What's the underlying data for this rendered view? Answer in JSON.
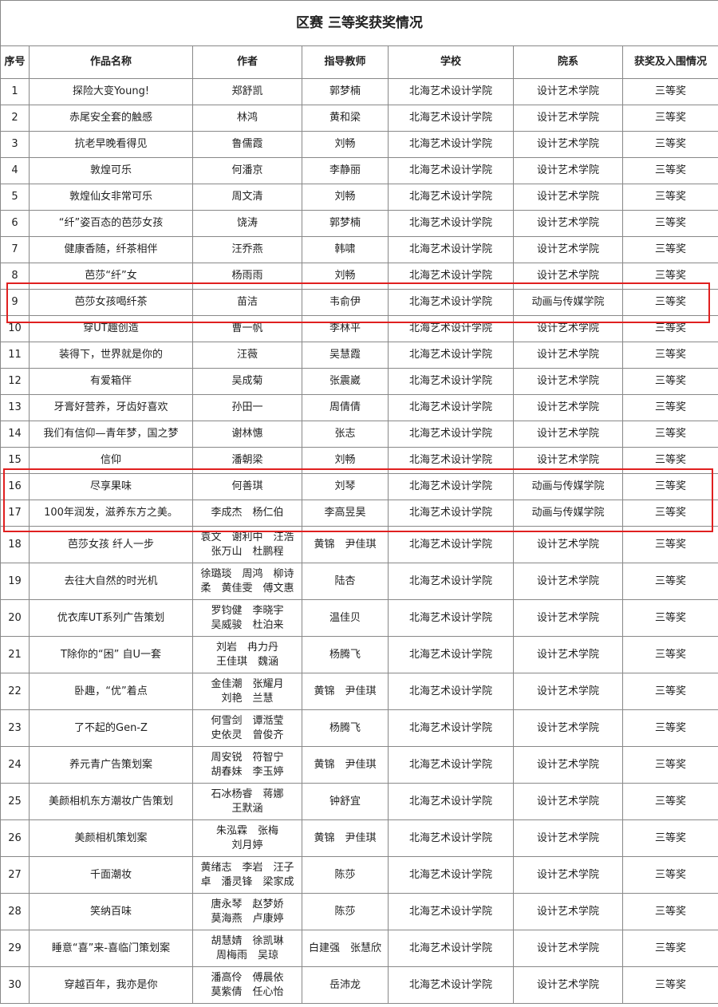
{
  "title": "区赛 三等奖获奖情况",
  "headers": [
    "序号",
    "作品名称",
    "作者",
    "指导教师",
    "学校",
    "院系",
    "获奖及入围情况"
  ],
  "highlight_color": "#e02020",
  "rows": [
    {
      "no": "1",
      "work": "探险大变Young!",
      "author": "郑舒凯",
      "teacher": "郭梦楠",
      "school": "北海艺术设计学院",
      "dept": "设计艺术学院",
      "award": "三等奖"
    },
    {
      "no": "2",
      "work": "赤尾安全套的触感",
      "author": "林鸿",
      "teacher": "黄和梁",
      "school": "北海艺术设计学院",
      "dept": "设计艺术学院",
      "award": "三等奖"
    },
    {
      "no": "3",
      "work": "抗老早晚看得见",
      "author": "鲁儒霞",
      "teacher": "刘畅",
      "school": "北海艺术设计学院",
      "dept": "设计艺术学院",
      "award": "三等奖"
    },
    {
      "no": "4",
      "work": "敦煌可乐",
      "author": "何潘京",
      "teacher": "李静丽",
      "school": "北海艺术设计学院",
      "dept": "设计艺术学院",
      "award": "三等奖"
    },
    {
      "no": "5",
      "work": "敦煌仙女非常可乐",
      "author": "周文清",
      "teacher": "刘畅",
      "school": "北海艺术设计学院",
      "dept": "设计艺术学院",
      "award": "三等奖"
    },
    {
      "no": "6",
      "work": "“纤”姿百态的芭莎女孩",
      "author": "饶涛",
      "teacher": "郭梦楠",
      "school": "北海艺术设计学院",
      "dept": "设计艺术学院",
      "award": "三等奖"
    },
    {
      "no": "7",
      "work": "健康香随，纤茶相伴",
      "author": "汪乔燕",
      "teacher": "韩啸",
      "school": "北海艺术设计学院",
      "dept": "设计艺术学院",
      "award": "三等奖"
    },
    {
      "no": "8",
      "work": "芭莎“纤”女",
      "author": "杨雨雨",
      "teacher": "刘畅",
      "school": "北海艺术设计学院",
      "dept": "设计艺术学院",
      "award": "三等奖"
    },
    {
      "no": "9",
      "work": "芭莎女孩喝纤茶",
      "author": "苗洁",
      "teacher": "韦俞伊",
      "school": "北海艺术设计学院",
      "dept": "动画与传媒学院",
      "award": "三等奖"
    },
    {
      "no": "10",
      "work": "穿UT趣创造",
      "author": "曹一帆",
      "teacher": "李林平",
      "school": "北海艺术设计学院",
      "dept": "设计艺术学院",
      "award": "三等奖"
    },
    {
      "no": "11",
      "work": "装得下，世界就是你的",
      "author": "汪薇",
      "teacher": "吴慧霞",
      "school": "北海艺术设计学院",
      "dept": "设计艺术学院",
      "award": "三等奖"
    },
    {
      "no": "12",
      "work": "有爱箱伴",
      "author": "吴成菊",
      "teacher": "张震崴",
      "school": "北海艺术设计学院",
      "dept": "设计艺术学院",
      "award": "三等奖"
    },
    {
      "no": "13",
      "work": "牙膏好营养，牙齿好喜欢",
      "author": "孙田一",
      "teacher": "周倩倩",
      "school": "北海艺术设计学院",
      "dept": "设计艺术学院",
      "award": "三等奖"
    },
    {
      "no": "14",
      "work": "我们有信仰—青年梦，国之梦",
      "author": "谢林憓",
      "teacher": "张志",
      "school": "北海艺术设计学院",
      "dept": "设计艺术学院",
      "award": "三等奖"
    },
    {
      "no": "15",
      "work": "信仰",
      "author": "潘朝梁",
      "teacher": "刘畅",
      "school": "北海艺术设计学院",
      "dept": "设计艺术学院",
      "award": "三等奖"
    },
    {
      "no": "16",
      "work": "尽享果味",
      "author": "何善琪",
      "teacher": "刘琴",
      "school": "北海艺术设计学院",
      "dept": "动画与传媒学院",
      "award": "三等奖"
    },
    {
      "no": "17",
      "work": "100年润发，滋养东方之美。",
      "author": "李成杰　杨仁伯",
      "teacher": "李高昱昊",
      "school": "北海艺术设计学院",
      "dept": "动画与传媒学院",
      "award": "三等奖"
    },
    {
      "no": "18",
      "work": "芭莎女孩 纤人一步",
      "author": "袁文　谢利中　汪浩\n张万山　杜鹏程",
      "teacher": "黄锦　尹佳琪",
      "school": "北海艺术设计学院",
      "dept": "设计艺术学院",
      "award": "三等奖"
    },
    {
      "no": "19",
      "work": "去往大自然的时光机",
      "author": "徐璐琰　周鸿　柳诗\n柔　黄佳雯　傅文惠",
      "teacher": "陆杏",
      "school": "北海艺术设计学院",
      "dept": "设计艺术学院",
      "award": "三等奖"
    },
    {
      "no": "20",
      "work": "优衣库UT系列广告策划",
      "author": "罗钧健　李晓宇\n吴威骏　杜泊来",
      "teacher": "温佳贝",
      "school": "北海艺术设计学院",
      "dept": "设计艺术学院",
      "award": "三等奖"
    },
    {
      "no": "21",
      "work": "T除你的“困” 自U一套",
      "author": "刘岩　冉力丹\n王佳琪　魏涵",
      "teacher": "杨腾飞",
      "school": "北海艺术设计学院",
      "dept": "设计艺术学院",
      "award": "三等奖"
    },
    {
      "no": "22",
      "work": "卧趣，“优”着点",
      "author": "金佳潮　张耀月\n刘艳　兰慧",
      "teacher": "黄锦　尹佳琪",
      "school": "北海艺术设计学院",
      "dept": "设计艺术学院",
      "award": "三等奖"
    },
    {
      "no": "23",
      "work": "了不起的Gen-Z",
      "author": "何雪剑　谭湉莹\n史依灵　曾俊齐",
      "teacher": "杨腾飞",
      "school": "北海艺术设计学院",
      "dept": "设计艺术学院",
      "award": "三等奖"
    },
    {
      "no": "24",
      "work": "养元青广告策划案",
      "author": "周安锐　符智宁\n胡春妹　李玉婷",
      "teacher": "黄锦　尹佳琪",
      "school": "北海艺术设计学院",
      "dept": "设计艺术学院",
      "award": "三等奖"
    },
    {
      "no": "25",
      "work": "美颜相机东方潮妆广告策划",
      "author": "石冰杨睿　蒋娜\n王默涵",
      "teacher": "钟舒宜",
      "school": "北海艺术设计学院",
      "dept": "设计艺术学院",
      "award": "三等奖"
    },
    {
      "no": "26",
      "work": "美颜相机策划案",
      "author": "朱泓霖　张梅\n刘月婷",
      "teacher": "黄锦　尹佳琪",
      "school": "北海艺术设计学院",
      "dept": "设计艺术学院",
      "award": "三等奖"
    },
    {
      "no": "27",
      "work": "千面潮妆",
      "author": "黄绪志　李岩　汪子\n卓　潘灵锋　梁家成",
      "teacher": "陈莎",
      "school": "北海艺术设计学院",
      "dept": "设计艺术学院",
      "award": "三等奖"
    },
    {
      "no": "28",
      "work": "笑纳百味",
      "author": "唐永琴　赵梦娇\n莫海燕　卢康婷",
      "teacher": "陈莎",
      "school": "北海艺术设计学院",
      "dept": "设计艺术学院",
      "award": "三等奖"
    },
    {
      "no": "29",
      "work": "睡意“喜”来-喜临门策划案",
      "author": "胡慧婧　徐凯琳\n周梅雨　吴琼",
      "teacher": "白建强　张慧欣",
      "school": "北海艺术设计学院",
      "dept": "设计艺术学院",
      "award": "三等奖"
    },
    {
      "no": "30",
      "work": "穿越百年，我亦是你",
      "author": "潘高伶　傅晨依\n莫紫倩　任心怡",
      "teacher": "岳沛龙",
      "school": "北海艺术设计学院",
      "dept": "设计艺术学院",
      "award": "三等奖"
    }
  ]
}
